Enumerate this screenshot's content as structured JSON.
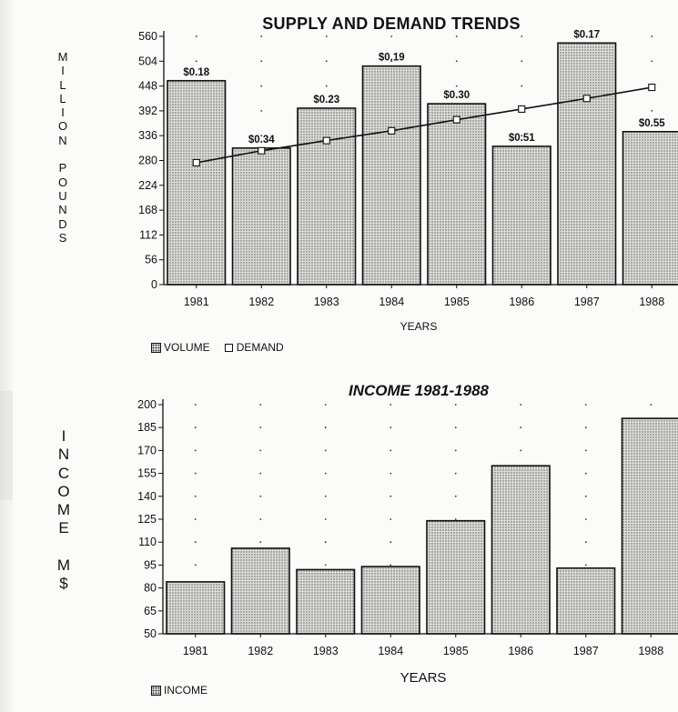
{
  "chart_data": [
    {
      "type": "bar",
      "title": "SUPPLY AND DEMAND TRENDS",
      "ylabel": "MILLION POUNDS",
      "xlabel": "YEARS",
      "categories": [
        "1981",
        "1982",
        "1983",
        "1984",
        "1985",
        "1986",
        "1987",
        "1988"
      ],
      "y_ticks": [
        "560",
        "504",
        "448",
        "392",
        "336",
        "280",
        "224",
        "168",
        "112",
        "56",
        "0"
      ],
      "ylim": [
        0,
        560
      ],
      "series": [
        {
          "name": "VOLUME",
          "type": "bar",
          "values": [
            460,
            308,
            398,
            493,
            408,
            312,
            545,
            345
          ]
        },
        {
          "name": "DEMAND",
          "type": "line",
          "values": [
            275,
            302,
            325,
            347,
            372,
            396,
            420,
            445
          ]
        }
      ],
      "data_labels": [
        "$0.18",
        "$0.34",
        "$0.23",
        "$0.19",
        "$0.30",
        "$0.51",
        "$0.17",
        "$0.55"
      ],
      "legend": [
        "VOLUME",
        "DEMAND"
      ],
      "legend_position": "bottom-left",
      "grid": "dotted"
    },
    {
      "type": "bar",
      "title": "INCOME 1981-1988",
      "ylabel": "INCOME M$",
      "xlabel": "YEARS",
      "categories": [
        "1981",
        "1982",
        "1983",
        "1984",
        "1985",
        "1986",
        "1987",
        "1988"
      ],
      "y_ticks": [
        "200",
        "185",
        "170",
        "155",
        "140",
        "125",
        "110",
        "95",
        "80",
        "65",
        "50"
      ],
      "ylim": [
        50,
        200
      ],
      "series": [
        {
          "name": "INCOME",
          "values": [
            84,
            106,
            92,
            94,
            124,
            160,
            93,
            191
          ]
        }
      ],
      "legend": [
        "INCOME"
      ],
      "legend_position": "bottom-left",
      "grid": "dotted"
    }
  ],
  "colors": {
    "ink": "#111111",
    "bar_fill": "#d9d9d6",
    "paper": "#fbfbfa"
  }
}
